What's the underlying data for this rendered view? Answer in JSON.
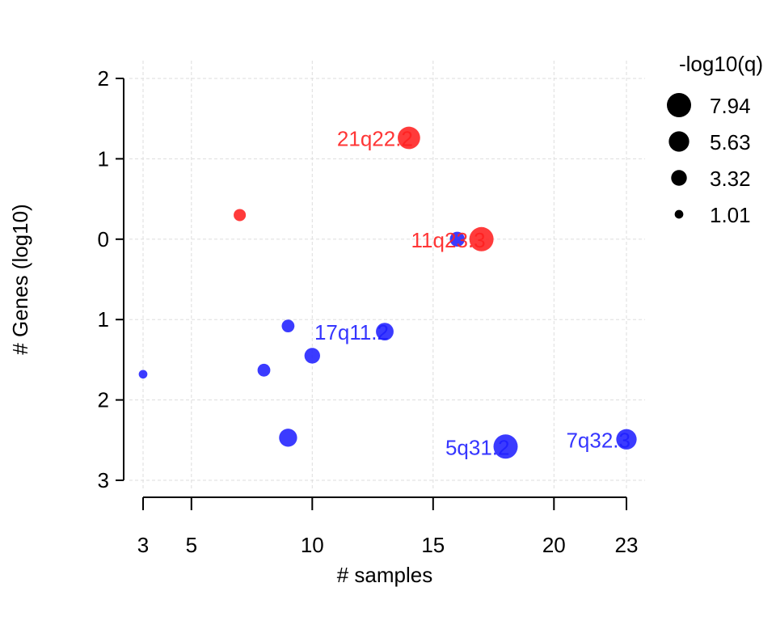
{
  "chart_data": {
    "type": "scatter",
    "title": "",
    "xlabel": "# samples",
    "ylabel": "# Genes (log10)",
    "xlim": [
      3,
      23
    ],
    "ylim": [
      -2,
      3
    ],
    "x_ticks": [
      3,
      5,
      10,
      15,
      20,
      23
    ],
    "y_ticks": [
      {
        "value": -2,
        "label": "2"
      },
      {
        "value": -1,
        "label": "1"
      },
      {
        "value": 0,
        "label": "0"
      },
      {
        "value": 1,
        "label": "1"
      },
      {
        "value": 2,
        "label": "2"
      },
      {
        "value": 3,
        "label": "3"
      }
    ],
    "grid": true,
    "colors": {
      "amplification": "#ff2020",
      "deletion": "#2020ff"
    },
    "points": [
      {
        "x": 14,
        "y": -1.26,
        "q": 6.8,
        "type": "amplification",
        "label": "21q22.2"
      },
      {
        "x": 17,
        "y": 0.0,
        "q": 7.94,
        "type": "amplification",
        "label": "11q23.3"
      },
      {
        "x": 7,
        "y": -0.3,
        "q": 2.0,
        "type": "amplification",
        "label": ""
      },
      {
        "x": 16,
        "y": 0.0,
        "q": 3.0,
        "type": "deletion",
        "label": ""
      },
      {
        "x": 9,
        "y": 1.08,
        "q": 2.2,
        "type": "deletion",
        "label": ""
      },
      {
        "x": 13,
        "y": 1.15,
        "q": 4.2,
        "type": "deletion",
        "label": "17q11.2"
      },
      {
        "x": 10,
        "y": 1.45,
        "q": 3.3,
        "type": "deletion",
        "label": ""
      },
      {
        "x": 3,
        "y": 1.68,
        "q": 1.01,
        "type": "deletion",
        "label": ""
      },
      {
        "x": 8,
        "y": 1.63,
        "q": 2.2,
        "type": "deletion",
        "label": ""
      },
      {
        "x": 9,
        "y": 2.47,
        "q": 4.4,
        "type": "deletion",
        "label": ""
      },
      {
        "x": 18,
        "y": 2.58,
        "q": 7.94,
        "type": "deletion",
        "label": "5q31.2"
      },
      {
        "x": 23,
        "y": 2.49,
        "q": 5.63,
        "type": "deletion",
        "label": "7q32.3"
      }
    ],
    "legend": {
      "title": "-log10(q)",
      "position": "top-right",
      "entries": [
        {
          "value": 7.94,
          "label": "7.94"
        },
        {
          "value": 5.63,
          "label": "5.63"
        },
        {
          "value": 3.32,
          "label": "3.32"
        },
        {
          "value": 1.01,
          "label": "1.01"
        }
      ]
    }
  }
}
